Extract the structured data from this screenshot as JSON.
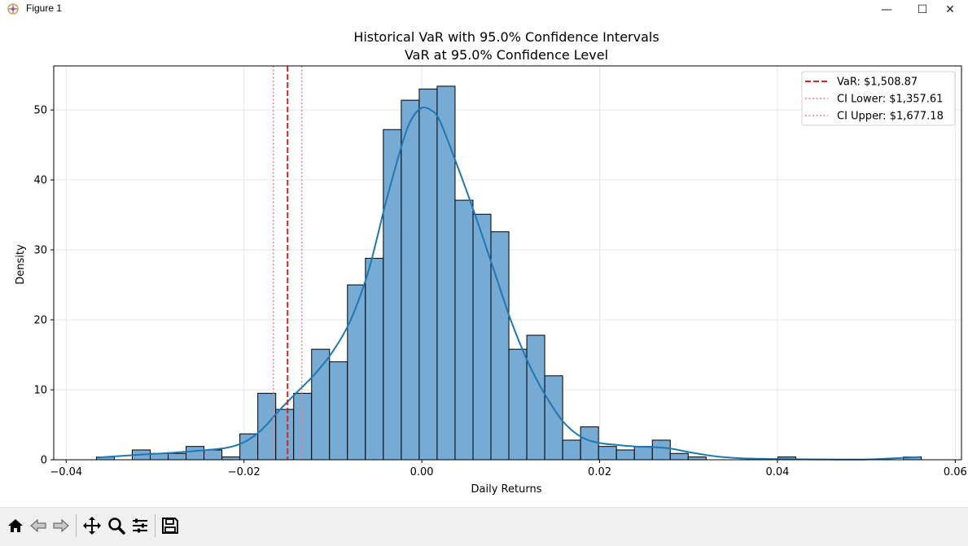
{
  "window": {
    "title": "Figure 1",
    "minimize_glyph": "—",
    "maximize_glyph": "☐",
    "close_glyph": "✕"
  },
  "toolbar": {
    "buttons": [
      {
        "name": "home-icon",
        "label": "Home"
      },
      {
        "name": "back-icon",
        "label": "Back"
      },
      {
        "name": "forward-icon",
        "label": "Forward"
      },
      {
        "name": "pan-icon",
        "label": "Pan"
      },
      {
        "name": "zoom-icon",
        "label": "Zoom"
      },
      {
        "name": "configure-subplots-icon",
        "label": "Configure subplots"
      },
      {
        "name": "save-icon",
        "label": "Save"
      }
    ]
  },
  "chart_data": {
    "type": "bar",
    "title": "Historical VaR with 95.0% Confidence Intervals",
    "subtitle": "VaR at 95.0% Confidence Level",
    "xlabel": "Daily Returns",
    "ylabel": "Density",
    "xlim": [
      -0.0414,
      0.0607
    ],
    "ylim": [
      0,
      56.3
    ],
    "xticks": [
      {
        "value": -0.04,
        "label": "−0.04"
      },
      {
        "value": -0.02,
        "label": "−0.02"
      },
      {
        "value": 0.0,
        "label": "0.00"
      },
      {
        "value": 0.02,
        "label": "0.02"
      },
      {
        "value": 0.04,
        "label": "0.04"
      },
      {
        "value": 0.06,
        "label": "0.06"
      }
    ],
    "yticks": [
      0,
      10,
      20,
      30,
      40,
      50
    ],
    "grid": true,
    "legend_position": "top-right",
    "bar_color": "#77abd3",
    "bar_edge": "#000000",
    "kde_color": "#1f77b4",
    "bin_start": -0.0366,
    "bin_width": 0.002017,
    "histogram": [
      0.4,
      0,
      1.4,
      0.9,
      0.9,
      1.9,
      1.4,
      0.4,
      3.7,
      9.5,
      7.2,
      9.5,
      15.8,
      14.0,
      25.0,
      28.8,
      47.2,
      51.4,
      53.0,
      53.4,
      37.1,
      35.1,
      32.6,
      15.8,
      17.8,
      12.0,
      2.8,
      4.7,
      1.9,
      1.4,
      1.9,
      2.8,
      0.9,
      0.4,
      0,
      0,
      0,
      0,
      0.4,
      0,
      0,
      0,
      0,
      0,
      0,
      0.4
    ],
    "kde": {
      "x": [
        -0.0366,
        -0.032,
        -0.028,
        -0.025,
        -0.022,
        -0.02,
        -0.018,
        -0.016,
        -0.014,
        -0.012,
        -0.01,
        -0.008,
        -0.006,
        -0.004,
        -0.002,
        -0.001,
        0.0,
        0.001,
        0.002,
        0.004,
        0.006,
        0.008,
        0.01,
        0.012,
        0.014,
        0.016,
        0.018,
        0.02,
        0.022,
        0.024,
        0.026,
        0.028,
        0.03,
        0.033,
        0.036,
        0.04,
        0.045,
        0.05,
        0.056
      ],
      "y": [
        0.3,
        0.7,
        1.0,
        1.3,
        1.7,
        2.5,
        4.3,
        7.1,
        9.7,
        12.3,
        15.5,
        20.0,
        27.0,
        37.0,
        46.0,
        49.0,
        50.3,
        50.0,
        48.5,
        42.0,
        35.0,
        27.5,
        20.0,
        13.8,
        9.0,
        5.3,
        3.2,
        2.4,
        2.1,
        1.9,
        1.8,
        1.6,
        1.1,
        0.5,
        0.2,
        0.1,
        0.05,
        0.05,
        0.4
      ]
    },
    "var_lines": [
      {
        "label": "VaR: $1,508.87",
        "x": -0.0151,
        "color": "#d62728",
        "style": "dashed"
      },
      {
        "label": "CI Lower: $1,357.61",
        "x": -0.0167,
        "color": "#f08080",
        "style": "dotted"
      },
      {
        "label": "CI Upper: $1,677.18",
        "x": -0.0135,
        "color": "#f08080",
        "style": "dotted"
      }
    ]
  }
}
